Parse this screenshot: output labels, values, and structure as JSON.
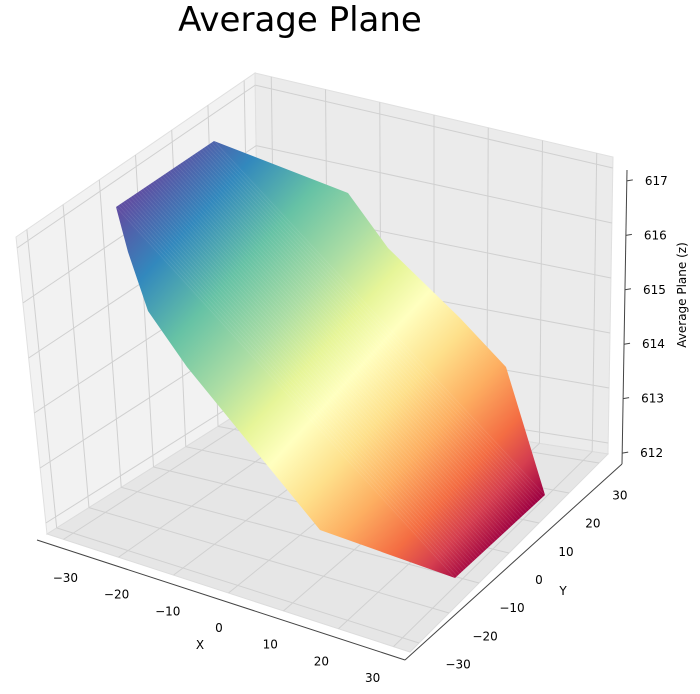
{
  "chart_data": {
    "type": "surface",
    "title": "Average Plane",
    "xlabel": "X",
    "ylabel": "Y",
    "zlabel": "Average Plane (z)",
    "x_ticks": [
      "−30",
      "−20",
      "−10",
      "0",
      "10",
      "20",
      "30"
    ],
    "y_ticks": [
      "−30",
      "−20",
      "−10",
      "0",
      "10",
      "20",
      "30"
    ],
    "z_ticks": [
      "612",
      "613",
      "614",
      "615",
      "616",
      "617"
    ],
    "xlim": [
      -33,
      33
    ],
    "ylim": [
      -33,
      33
    ],
    "zlim": [
      611.8,
      617.2
    ],
    "colormap": "Spectral",
    "grid": true
  }
}
